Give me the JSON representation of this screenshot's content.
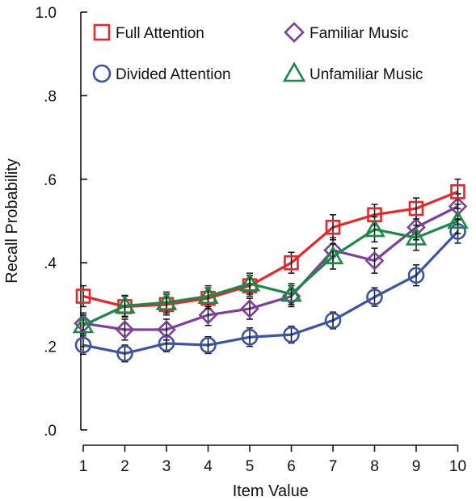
{
  "chart_data": {
    "type": "line",
    "title": "",
    "xlabel": "Item Value",
    "ylabel": "Recall Probability",
    "x": [
      1,
      2,
      3,
      4,
      5,
      6,
      7,
      8,
      9,
      10
    ],
    "xticks": [
      "1",
      "2",
      "3",
      "4",
      "5",
      "6",
      "7",
      "8",
      "9",
      "10"
    ],
    "ylim": [
      0,
      1.0
    ],
    "yticks": [
      {
        "value": 0.0,
        "label": ".0"
      },
      {
        "value": 0.2,
        "label": ".2"
      },
      {
        "value": 0.4,
        "label": ".4"
      },
      {
        "value": 0.6,
        "label": ".6"
      },
      {
        "value": 0.8,
        "label": ".8"
      },
      {
        "value": 1.0,
        "label": "1.0"
      }
    ],
    "grid": false,
    "legend_position": "top",
    "error_bars": true,
    "series": [
      {
        "name": "Full Attention",
        "color": "#e8262a",
        "marker": "square",
        "values": [
          0.32,
          0.295,
          0.3,
          0.315,
          0.345,
          0.4,
          0.485,
          0.515,
          0.53,
          0.57
        ],
        "errors": [
          0.025,
          0.025,
          0.025,
          0.025,
          0.025,
          0.025,
          0.03,
          0.025,
          0.025,
          0.03
        ]
      },
      {
        "name": "Divided Attention",
        "color": "#3b54a8",
        "marker": "circle",
        "values": [
          0.203,
          0.183,
          0.207,
          0.203,
          0.222,
          0.228,
          0.262,
          0.318,
          0.37,
          0.475
        ],
        "errors": [
          0.022,
          0.02,
          0.02,
          0.02,
          0.022,
          0.02,
          0.02,
          0.022,
          0.025,
          0.028
        ]
      },
      {
        "name": "Familiar Music",
        "color": "#7e3f98",
        "marker": "diamond",
        "values": [
          0.255,
          0.24,
          0.24,
          0.275,
          0.29,
          0.32,
          0.43,
          0.405,
          0.485,
          0.535
        ],
        "errors": [
          0.025,
          0.025,
          0.025,
          0.025,
          0.025,
          0.025,
          0.03,
          0.03,
          0.03,
          0.03
        ]
      },
      {
        "name": "Unfamiliar Music",
        "color": "#1b8a47",
        "marker": "triangle",
        "values": [
          0.25,
          0.297,
          0.305,
          0.32,
          0.35,
          0.325,
          0.415,
          0.48,
          0.46,
          0.5
        ],
        "errors": [
          0.025,
          0.025,
          0.025,
          0.025,
          0.025,
          0.025,
          0.03,
          0.03,
          0.03,
          0.03
        ]
      }
    ]
  }
}
